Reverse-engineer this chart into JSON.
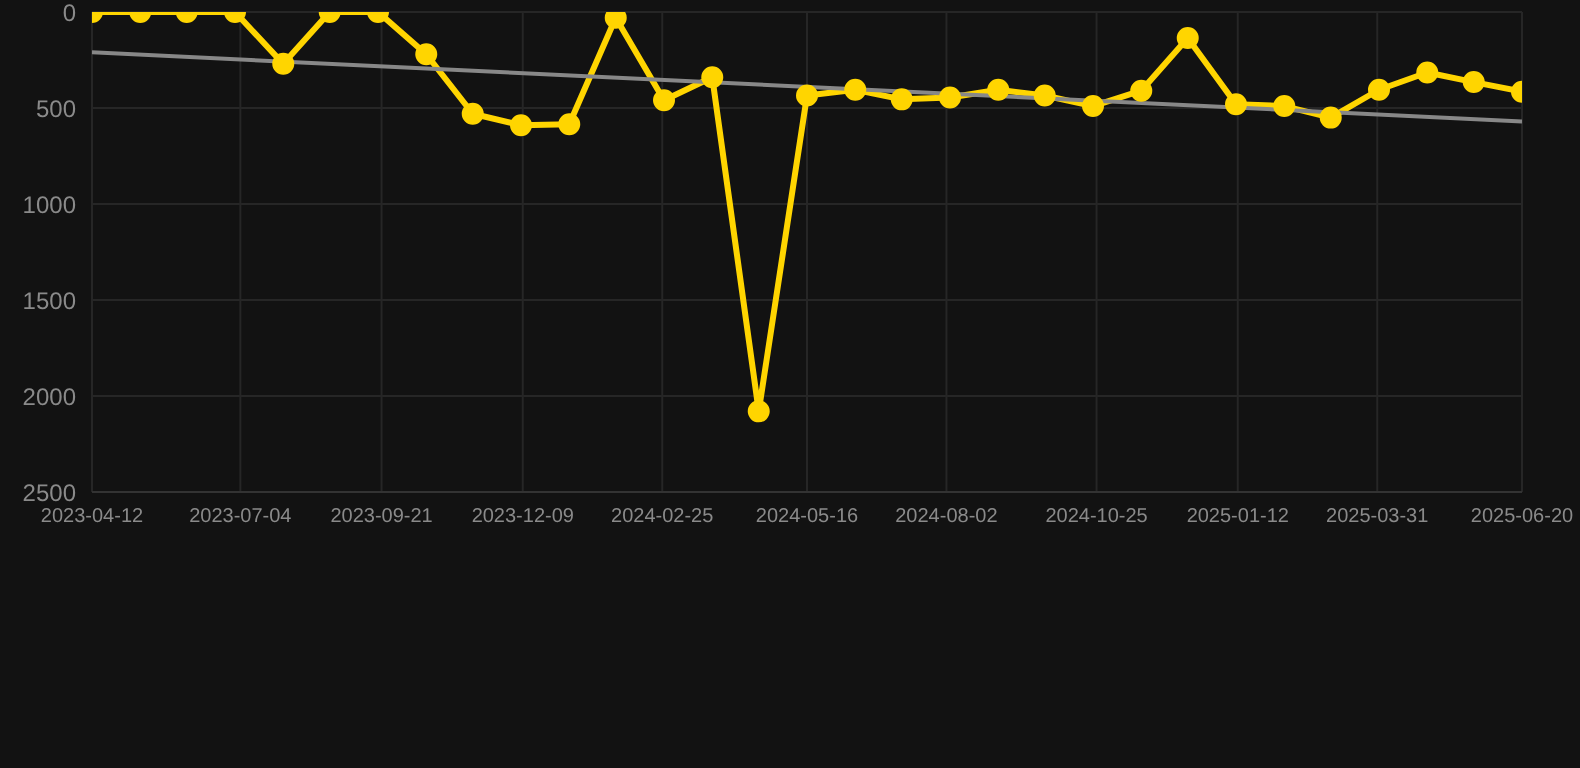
{
  "chart_data": {
    "type": "line",
    "x": [
      "2023-04-12",
      "2023-05-09",
      "2023-06-04",
      "2023-07-01",
      "2023-07-28",
      "2023-08-23",
      "2023-09-19",
      "2023-10-16",
      "2023-11-11",
      "2023-12-08",
      "2024-01-04",
      "2024-01-30",
      "2024-02-26",
      "2024-03-24",
      "2024-04-19",
      "2024-05-16",
      "2024-06-12",
      "2024-07-08",
      "2024-08-04",
      "2024-08-31",
      "2024-09-26",
      "2024-10-23",
      "2024-11-19",
      "2024-12-15",
      "2025-01-11",
      "2025-02-07",
      "2025-03-05",
      "2025-04-01",
      "2025-04-28",
      "2025-05-24",
      "2025-06-20"
    ],
    "series": [
      {
        "color": "#ffd500",
        "marker": "circle",
        "values": [
          0,
          0,
          0,
          0,
          270,
          0,
          0,
          220,
          530,
          590,
          585,
          30,
          460,
          340,
          2080,
          435,
          405,
          455,
          445,
          405,
          435,
          490,
          410,
          135,
          480,
          490,
          550,
          405,
          315,
          365,
          415
        ]
      },
      {
        "type": "line",
        "color": "#888888",
        "marker": "none",
        "x": [
          "2023-04-12",
          "2025-06-20"
        ],
        "values": [
          210,
          570
        ]
      }
    ],
    "xlim": [
      "2023-04-12",
      "2025-06-20"
    ],
    "xticks": [
      "2023-04-12",
      "2023-07-04",
      "2023-09-21",
      "2023-12-09",
      "2024-02-25",
      "2024-05-16",
      "2024-08-02",
      "2024-10-25",
      "2025-01-12",
      "2025-03-31",
      "2025-06-20"
    ],
    "ylim": [
      2500,
      0
    ],
    "yticks": [
      0,
      500,
      1000,
      1500,
      2000,
      2500
    ],
    "grid": true,
    "line_style": "solid"
  }
}
